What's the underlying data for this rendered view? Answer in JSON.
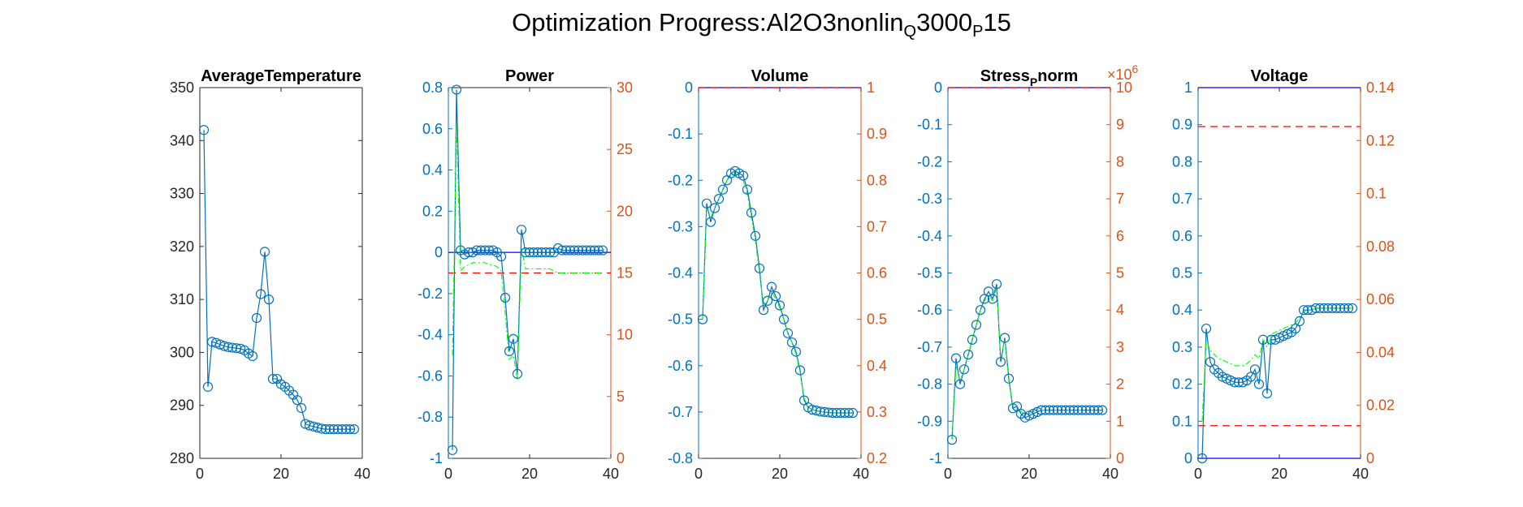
{
  "figure": {
    "title_prefix": "Optimization Progress:Al2O3nonlin",
    "title_sub1": "Q",
    "title_mid": "3000",
    "title_sub2": "P",
    "title_suffix": "15"
  },
  "colors": {
    "left_axis": "#0072BD",
    "right_axis": "#D95319",
    "secondary_line": "#00FF00",
    "bound": "#0000FF",
    "red_dashed": "#FF0000"
  },
  "chart_data": [
    {
      "type": "line",
      "title": "AverageTemperature",
      "xlim": [
        0,
        40
      ],
      "xticks": [
        0,
        20,
        40
      ],
      "ylim": [
        280,
        350
      ],
      "yticks": [
        280,
        290,
        300,
        310,
        320,
        330,
        340,
        350
      ],
      "ytick_labels": [
        "280",
        "290",
        "300",
        "310",
        "320",
        "330",
        "340",
        "350"
      ],
      "series": [
        {
          "marker": "circle",
          "x": [
            1,
            2,
            3,
            4,
            5,
            6,
            7,
            8,
            9,
            10,
            11,
            12,
            13,
            14,
            15,
            16,
            17,
            18,
            19,
            20,
            21,
            22,
            23,
            24,
            25,
            26,
            27,
            28,
            29,
            30,
            31,
            32,
            33,
            34,
            35,
            36,
            37,
            38
          ],
          "values": [
            342,
            293.5,
            302,
            301.8,
            301.5,
            301.2,
            301,
            300.9,
            300.8,
            300.7,
            300.4,
            299.8,
            299.3,
            306.5,
            311,
            319,
            310,
            295,
            295,
            294,
            293.5,
            292.8,
            292,
            291,
            289.5,
            286.5,
            286.2,
            286,
            285.8,
            285.6,
            285.5,
            285.5,
            285.5,
            285.5,
            285.5,
            285.5,
            285.5,
            285.5
          ]
        }
      ]
    },
    {
      "type": "line",
      "title": "Power",
      "xlim": [
        0,
        40
      ],
      "xticks": [
        0,
        20,
        40
      ],
      "ylim": [
        -1,
        0.8
      ],
      "yticks": [
        -1,
        -0.8,
        -0.6,
        -0.4,
        -0.2,
        0,
        0.2,
        0.4,
        0.6,
        0.8
      ],
      "ytick_labels": [
        "-1",
        "-0.8",
        "-0.6",
        "-0.4",
        "-0.2",
        "0",
        "0.2",
        "0.4",
        "0.6",
        "0.8"
      ],
      "ylim_right": [
        0,
        30
      ],
      "yticks_right": [
        0,
        5,
        10,
        15,
        20,
        25,
        30
      ],
      "ytick_labels_right": [
        "0",
        "5",
        "10",
        "15",
        "20",
        "25",
        "30"
      ],
      "hlines": [
        {
          "axis": "left",
          "y": 0,
          "style": "solid",
          "color": "bound"
        },
        {
          "axis": "left",
          "y": -0.1,
          "style": "dashed",
          "color": "red_dashed"
        }
      ],
      "series": [
        {
          "marker": "circle",
          "x": [
            1,
            2,
            3,
            4,
            5,
            6,
            7,
            8,
            9,
            10,
            11,
            12,
            13,
            14,
            15,
            16,
            17,
            18,
            19,
            20,
            21,
            22,
            23,
            24,
            25,
            26,
            27,
            28,
            29,
            30,
            31,
            32,
            33,
            34,
            35,
            36,
            37,
            38
          ],
          "values": [
            -0.96,
            0.79,
            0.01,
            -0.01,
            0,
            0,
            0.01,
            0.01,
            0.01,
            0.01,
            0.01,
            0,
            -0.02,
            -0.22,
            -0.48,
            -0.42,
            -0.59,
            0.11,
            0,
            0,
            0,
            0,
            0,
            0,
            0,
            0,
            0.02,
            0.01,
            0.01,
            0.01,
            0.01,
            0.01,
            0.01,
            0.01,
            0.01,
            0.01,
            0.01,
            0.01
          ]
        },
        {
          "line_style": "dash-dot",
          "color": "secondary_line",
          "x": [
            1,
            2,
            3,
            4,
            5,
            6,
            7,
            8,
            9,
            10,
            11,
            12,
            13,
            14,
            15,
            16,
            17,
            18,
            19,
            20,
            21,
            22,
            23,
            24,
            25,
            26,
            27,
            28,
            29,
            30,
            31,
            32,
            33,
            34,
            35,
            36,
            37,
            38
          ],
          "values": [
            -0.5,
            0.62,
            -0.09,
            -0.07,
            -0.06,
            -0.05,
            -0.05,
            -0.05,
            -0.05,
            -0.06,
            -0.06,
            -0.07,
            -0.09,
            -0.3,
            -0.52,
            -0.5,
            -0.62,
            0.02,
            -0.08,
            -0.08,
            -0.08,
            -0.08,
            -0.08,
            -0.08,
            -0.08,
            -0.09,
            -0.1,
            -0.1,
            -0.1,
            -0.1,
            -0.1,
            -0.1,
            -0.1,
            -0.1,
            -0.1,
            -0.1,
            -0.1,
            -0.1
          ]
        }
      ]
    },
    {
      "type": "line",
      "title": "Volume",
      "xlim": [
        0,
        40
      ],
      "xticks": [
        0,
        20,
        40
      ],
      "ylim": [
        -0.8,
        0
      ],
      "yticks": [
        -0.8,
        -0.7,
        -0.6,
        -0.5,
        -0.4,
        -0.3,
        -0.2,
        -0.1,
        0
      ],
      "ytick_labels": [
        "-0.8",
        "-0.7",
        "-0.6",
        "-0.5",
        "-0.4",
        "-0.3",
        "-0.2",
        "-0.1",
        "0"
      ],
      "ylim_right": [
        0.2,
        1
      ],
      "yticks_right": [
        0.2,
        0.3,
        0.4,
        0.5,
        0.6,
        0.7,
        0.8,
        0.9,
        1
      ],
      "ytick_labels_right": [
        "0.2",
        "0.3",
        "0.4",
        "0.5",
        "0.6",
        "0.7",
        "0.8",
        "0.9",
        "1"
      ],
      "hlines": [
        {
          "axis": "left",
          "y": 0,
          "style": "solid",
          "color": "bound"
        },
        {
          "axis": "left",
          "y": 0,
          "style": "dashed",
          "color": "red_dashed"
        }
      ],
      "series": [
        {
          "marker": "circle",
          "x": [
            1,
            2,
            3,
            4,
            5,
            6,
            7,
            8,
            9,
            10,
            11,
            12,
            13,
            14,
            15,
            16,
            17,
            18,
            19,
            20,
            21,
            22,
            23,
            24,
            25,
            26,
            27,
            28,
            29,
            30,
            31,
            32,
            33,
            34,
            35,
            36,
            37,
            38
          ],
          "values": [
            -0.5,
            -0.25,
            -0.29,
            -0.26,
            -0.24,
            -0.22,
            -0.2,
            -0.185,
            -0.18,
            -0.185,
            -0.19,
            -0.22,
            -0.27,
            -0.32,
            -0.39,
            -0.48,
            -0.46,
            -0.43,
            -0.45,
            -0.47,
            -0.5,
            -0.53,
            -0.55,
            -0.57,
            -0.61,
            -0.675,
            -0.69,
            -0.695,
            -0.697,
            -0.699,
            -0.7,
            -0.701,
            -0.702,
            -0.702,
            -0.702,
            -0.702,
            -0.702,
            -0.702
          ]
        },
        {
          "line_style": "dash-dot",
          "color": "secondary_line",
          "x": [
            1,
            2,
            3,
            4,
            5,
            6,
            7,
            8,
            9,
            10,
            11,
            12,
            13,
            14,
            15,
            16,
            17,
            18,
            19,
            20,
            21,
            22,
            23,
            24,
            25,
            26,
            27,
            28,
            29,
            30,
            31,
            32,
            33,
            34,
            35,
            36,
            37,
            38
          ],
          "values": [
            -0.5,
            -0.26,
            -0.28,
            -0.26,
            -0.24,
            -0.22,
            -0.2,
            -0.19,
            -0.185,
            -0.19,
            -0.2,
            -0.23,
            -0.28,
            -0.33,
            -0.4,
            -0.47,
            -0.46,
            -0.44,
            -0.455,
            -0.475,
            -0.5,
            -0.53,
            -0.55,
            -0.575,
            -0.615,
            -0.67,
            -0.69,
            -0.695,
            -0.697,
            -0.699,
            -0.7,
            -0.701,
            -0.702,
            -0.702,
            -0.702,
            -0.702,
            -0.702,
            -0.702
          ]
        }
      ]
    },
    {
      "type": "line",
      "title_main": "Stress",
      "title_sub": "P",
      "title_end": "norm",
      "xlim": [
        0,
        40
      ],
      "xticks": [
        0,
        20,
        40
      ],
      "ylim": [
        -1,
        0
      ],
      "yticks": [
        -1,
        -0.9,
        -0.8,
        -0.7,
        -0.6,
        -0.5,
        -0.4,
        -0.3,
        -0.2,
        -0.1,
        0
      ],
      "ytick_labels": [
        "-1",
        "-0.9",
        "-0.8",
        "-0.7",
        "-0.6",
        "-0.5",
        "-0.4",
        "-0.3",
        "-0.2",
        "-0.1",
        "0"
      ],
      "ylim_right": [
        0,
        10
      ],
      "yticks_right": [
        0,
        1,
        2,
        3,
        4,
        5,
        6,
        7,
        8,
        9,
        10
      ],
      "ytick_labels_right": [
        "0",
        "1",
        "2",
        "3",
        "4",
        "5",
        "6",
        "7",
        "8",
        "9",
        "10"
      ],
      "right_exponent_base": "×10",
      "right_exponent_power": "6",
      "hlines": [
        {
          "axis": "left",
          "y": 0,
          "style": "solid",
          "color": "bound"
        },
        {
          "axis": "left",
          "y": 0,
          "style": "dashed",
          "color": "red_dashed"
        }
      ],
      "series": [
        {
          "marker": "circle",
          "x": [
            1,
            2,
            3,
            4,
            5,
            6,
            7,
            8,
            9,
            10,
            11,
            12,
            13,
            14,
            15,
            16,
            17,
            18,
            19,
            20,
            21,
            22,
            23,
            24,
            25,
            26,
            27,
            28,
            29,
            30,
            31,
            32,
            33,
            34,
            35,
            36,
            37,
            38
          ],
          "values": [
            -0.95,
            -0.73,
            -0.8,
            -0.76,
            -0.72,
            -0.68,
            -0.64,
            -0.6,
            -0.57,
            -0.55,
            -0.57,
            -0.53,
            -0.74,
            -0.675,
            -0.785,
            -0.865,
            -0.86,
            -0.88,
            -0.89,
            -0.885,
            -0.88,
            -0.875,
            -0.87,
            -0.87,
            -0.87,
            -0.87,
            -0.87,
            -0.87,
            -0.87,
            -0.87,
            -0.87,
            -0.87,
            -0.87,
            -0.87,
            -0.87,
            -0.87,
            -0.87,
            -0.87
          ]
        },
        {
          "line_style": "dash-dot",
          "color": "secondary_line",
          "x": [
            1,
            2,
            3,
            4,
            5,
            6,
            7,
            8,
            9,
            10,
            11,
            12,
            13,
            14,
            15,
            16,
            17,
            18,
            19,
            20,
            21,
            22,
            23,
            24,
            25,
            26,
            27,
            28,
            29,
            30,
            31,
            32,
            33,
            34,
            35,
            36,
            37,
            38
          ],
          "values": [
            -0.95,
            -0.75,
            -0.79,
            -0.76,
            -0.72,
            -0.68,
            -0.64,
            -0.6,
            -0.575,
            -0.56,
            -0.575,
            -0.54,
            -0.73,
            -0.68,
            -0.79,
            -0.86,
            -0.86,
            -0.875,
            -0.88,
            -0.88,
            -0.875,
            -0.87,
            -0.87,
            -0.87,
            -0.87,
            -0.87,
            -0.87,
            -0.87,
            -0.87,
            -0.87,
            -0.87,
            -0.87,
            -0.87,
            -0.87,
            -0.87,
            -0.87,
            -0.87,
            -0.87
          ]
        }
      ]
    },
    {
      "type": "line",
      "title": "Voltage",
      "xlim": [
        0,
        40
      ],
      "xticks": [
        0,
        20,
        40
      ],
      "ylim": [
        0,
        1
      ],
      "yticks": [
        0,
        0.1,
        0.2,
        0.3,
        0.4,
        0.5,
        0.6,
        0.7,
        0.8,
        0.9,
        1
      ],
      "ytick_labels": [
        "0",
        "0.1",
        "0.2",
        "0.3",
        "0.4",
        "0.5",
        "0.6",
        "0.7",
        "0.8",
        "0.9",
        "1"
      ],
      "ylim_right": [
        0,
        0.14
      ],
      "yticks_right": [
        0,
        0.02,
        0.04,
        0.06,
        0.08,
        0.1,
        0.12,
        0.14
      ],
      "ytick_labels_right": [
        "0",
        "0.02",
        "0.04",
        "0.06",
        "0.08",
        "0.1",
        "0.12",
        "0.14"
      ],
      "hlines": [
        {
          "axis": "left",
          "y": 1,
          "style": "solid",
          "color": "bound"
        },
        {
          "axis": "left",
          "y": 0,
          "style": "solid",
          "color": "bound"
        },
        {
          "axis": "left",
          "y": 0.895,
          "style": "dashed",
          "color": "red_dashed"
        },
        {
          "axis": "left",
          "y": 0.088,
          "style": "dashed",
          "color": "red_dashed"
        }
      ],
      "series": [
        {
          "marker": "circle",
          "x": [
            1,
            2,
            3,
            4,
            5,
            6,
            7,
            8,
            9,
            10,
            11,
            12,
            13,
            14,
            15,
            16,
            17,
            18,
            19,
            20,
            21,
            22,
            23,
            24,
            25,
            26,
            27,
            28,
            29,
            30,
            31,
            32,
            33,
            34,
            35,
            36,
            37,
            38
          ],
          "values": [
            0,
            0.35,
            0.26,
            0.24,
            0.23,
            0.22,
            0.215,
            0.21,
            0.205,
            0.205,
            0.205,
            0.21,
            0.22,
            0.24,
            0.2,
            0.32,
            0.175,
            0.32,
            0.32,
            0.325,
            0.33,
            0.335,
            0.34,
            0.35,
            0.37,
            0.4,
            0.4,
            0.4,
            0.405,
            0.405,
            0.405,
            0.405,
            0.405,
            0.405,
            0.405,
            0.405,
            0.405,
            0.405
          ]
        },
        {
          "line_style": "dash-dot",
          "color": "secondary_line",
          "x": [
            1,
            2,
            3,
            4,
            5,
            6,
            7,
            8,
            9,
            10,
            11,
            12,
            13,
            14,
            15,
            16,
            17,
            18,
            19,
            20,
            21,
            22,
            23,
            24,
            25,
            26,
            27,
            28,
            29,
            30,
            31,
            32,
            33,
            34,
            35,
            36,
            37,
            38
          ],
          "values": [
            0.1,
            0.32,
            0.29,
            0.28,
            0.27,
            0.265,
            0.26,
            0.255,
            0.25,
            0.25,
            0.25,
            0.255,
            0.265,
            0.28,
            0.27,
            0.32,
            0.3,
            0.335,
            0.34,
            0.345,
            0.35,
            0.355,
            0.36,
            0.365,
            0.38,
            0.395,
            0.4,
            0.4,
            0.405,
            0.405,
            0.405,
            0.405,
            0.405,
            0.405,
            0.405,
            0.405,
            0.405,
            0.405
          ]
        }
      ]
    }
  ]
}
